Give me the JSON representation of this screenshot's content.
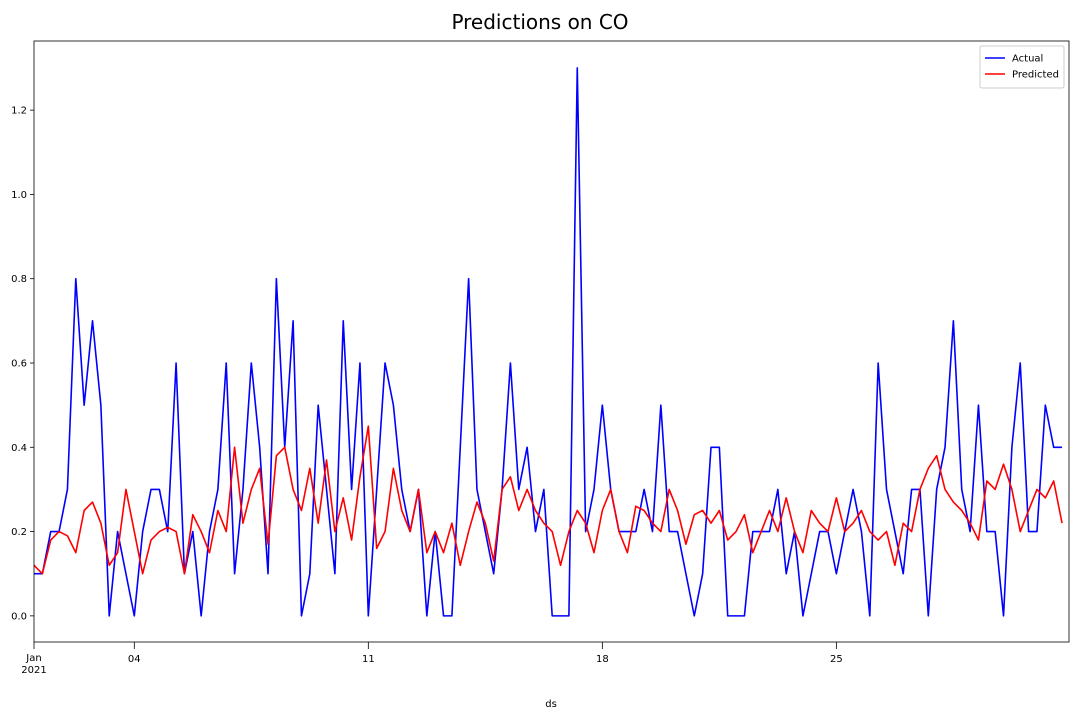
{
  "chart_data": {
    "type": "line",
    "title": "Predictions on CO",
    "xlabel": "ds",
    "x": [
      "2021-01-01 00:00",
      "2021-01-01 06:00",
      "2021-01-01 12:00",
      "2021-01-01 18:00",
      "2021-01-02 00:00",
      "2021-01-02 06:00",
      "2021-01-02 12:00",
      "2021-01-02 18:00",
      "2021-01-03 00:00",
      "2021-01-03 06:00",
      "2021-01-03 12:00",
      "2021-01-03 18:00",
      "2021-01-04 00:00",
      "2021-01-04 06:00",
      "2021-01-04 12:00",
      "2021-01-04 18:00",
      "2021-01-05 00:00",
      "2021-01-05 06:00",
      "2021-01-05 12:00",
      "2021-01-05 18:00",
      "2021-01-06 00:00",
      "2021-01-06 06:00",
      "2021-01-06 12:00",
      "2021-01-06 18:00",
      "2021-01-07 00:00",
      "2021-01-07 06:00",
      "2021-01-07 12:00",
      "2021-01-07 18:00",
      "2021-01-08 00:00",
      "2021-01-08 06:00",
      "2021-01-08 12:00",
      "2021-01-08 18:00",
      "2021-01-09 00:00",
      "2021-01-09 06:00",
      "2021-01-09 12:00",
      "2021-01-09 18:00",
      "2021-01-10 00:00",
      "2021-01-10 06:00",
      "2021-01-10 12:00",
      "2021-01-10 18:00",
      "2021-01-11 00:00",
      "2021-01-11 06:00",
      "2021-01-11 12:00",
      "2021-01-11 18:00",
      "2021-01-12 00:00",
      "2021-01-12 06:00",
      "2021-01-12 12:00",
      "2021-01-12 18:00",
      "2021-01-13 00:00",
      "2021-01-13 06:00",
      "2021-01-13 12:00",
      "2021-01-13 18:00",
      "2021-01-14 00:00",
      "2021-01-14 06:00",
      "2021-01-14 12:00",
      "2021-01-14 18:00",
      "2021-01-15 00:00",
      "2021-01-15 06:00",
      "2021-01-15 12:00",
      "2021-01-15 18:00",
      "2021-01-16 00:00",
      "2021-01-16 06:00",
      "2021-01-16 12:00",
      "2021-01-16 18:00",
      "2021-01-17 00:00",
      "2021-01-17 06:00",
      "2021-01-17 12:00",
      "2021-01-17 18:00",
      "2021-01-18 00:00",
      "2021-01-18 06:00",
      "2021-01-18 12:00",
      "2021-01-18 18:00",
      "2021-01-19 00:00",
      "2021-01-19 06:00",
      "2021-01-19 12:00",
      "2021-01-19 18:00",
      "2021-01-20 00:00",
      "2021-01-20 06:00",
      "2021-01-20 12:00",
      "2021-01-20 18:00",
      "2021-01-21 00:00",
      "2021-01-21 06:00",
      "2021-01-21 12:00",
      "2021-01-21 18:00",
      "2021-01-22 00:00",
      "2021-01-22 06:00",
      "2021-01-22 12:00",
      "2021-01-22 18:00",
      "2021-01-23 00:00",
      "2021-01-23 06:00",
      "2021-01-23 12:00",
      "2021-01-23 18:00",
      "2021-01-24 00:00",
      "2021-01-24 06:00",
      "2021-01-24 12:00",
      "2021-01-24 18:00",
      "2021-01-25 00:00",
      "2021-01-25 06:00",
      "2021-01-25 12:00",
      "2021-01-25 18:00",
      "2021-01-26 00:00",
      "2021-01-26 06:00",
      "2021-01-26 12:00",
      "2021-01-26 18:00",
      "2021-01-27 00:00",
      "2021-01-27 06:00",
      "2021-01-27 12:00",
      "2021-01-27 18:00",
      "2021-01-28 00:00",
      "2021-01-28 06:00",
      "2021-01-28 12:00",
      "2021-01-28 18:00",
      "2021-01-29 00:00",
      "2021-01-29 06:00",
      "2021-01-29 12:00",
      "2021-01-29 18:00",
      "2021-01-30 00:00",
      "2021-01-30 06:00",
      "2021-01-30 12:00",
      "2021-01-30 18:00",
      "2021-01-31 00:00",
      "2021-01-31 06:00",
      "2021-01-31 12:00",
      "2021-01-31 18:00"
    ],
    "series": [
      {
        "name": "Actual",
        "color": "#0000ff",
        "values": [
          0.1,
          0.1,
          0.2,
          0.2,
          0.3,
          0.8,
          0.5,
          0.7,
          0.5,
          0.0,
          0.2,
          0.1,
          0.0,
          0.2,
          0.3,
          0.3,
          0.2,
          0.6,
          0.1,
          0.2,
          0.0,
          0.2,
          0.3,
          0.6,
          0.1,
          0.3,
          0.6,
          0.4,
          0.1,
          0.8,
          0.4,
          0.7,
          0.0,
          0.1,
          0.5,
          0.3,
          0.1,
          0.7,
          0.3,
          0.6,
          0.0,
          0.3,
          0.6,
          0.5,
          0.3,
          0.2,
          0.3,
          0.0,
          0.2,
          0.0,
          0.0,
          0.4,
          0.8,
          0.3,
          0.2,
          0.1,
          0.3,
          0.6,
          0.3,
          0.4,
          0.2,
          0.3,
          0.0,
          0.0,
          0.0,
          1.3,
          0.2,
          0.3,
          0.5,
          0.3,
          0.2,
          0.2,
          0.2,
          0.3,
          0.2,
          0.5,
          0.2,
          0.2,
          0.1,
          0.0,
          0.1,
          0.4,
          0.4,
          0.0,
          0.0,
          0.0,
          0.2,
          0.2,
          0.2,
          0.3,
          0.1,
          0.2,
          0.0,
          0.1,
          0.2,
          0.2,
          0.1,
          0.2,
          0.3,
          0.2,
          0.0,
          0.6,
          0.3,
          0.2,
          0.1,
          0.3,
          0.3,
          0.0,
          0.3,
          0.4,
          0.7,
          0.3,
          0.2,
          0.5,
          0.2,
          0.2,
          0.0,
          0.4,
          0.6,
          0.2,
          0.2,
          0.5,
          0.4,
          0.4
        ]
      },
      {
        "name": "Predicted",
        "color": "#ff0000",
        "values": [
          0.12,
          0.1,
          0.18,
          0.2,
          0.19,
          0.15,
          0.25,
          0.27,
          0.22,
          0.12,
          0.15,
          0.3,
          0.2,
          0.1,
          0.18,
          0.2,
          0.21,
          0.2,
          0.1,
          0.24,
          0.2,
          0.15,
          0.25,
          0.2,
          0.4,
          0.22,
          0.3,
          0.35,
          0.17,
          0.38,
          0.4,
          0.3,
          0.25,
          0.35,
          0.22,
          0.37,
          0.2,
          0.28,
          0.18,
          0.33,
          0.45,
          0.16,
          0.2,
          0.35,
          0.25,
          0.2,
          0.3,
          0.15,
          0.2,
          0.15,
          0.22,
          0.12,
          0.2,
          0.27,
          0.22,
          0.13,
          0.3,
          0.33,
          0.25,
          0.3,
          0.25,
          0.22,
          0.2,
          0.12,
          0.2,
          0.25,
          0.22,
          0.15,
          0.25,
          0.3,
          0.2,
          0.15,
          0.26,
          0.25,
          0.22,
          0.2,
          0.3,
          0.25,
          0.17,
          0.24,
          0.25,
          0.22,
          0.25,
          0.18,
          0.2,
          0.24,
          0.15,
          0.2,
          0.25,
          0.2,
          0.28,
          0.2,
          0.15,
          0.25,
          0.22,
          0.2,
          0.28,
          0.2,
          0.22,
          0.25,
          0.2,
          0.18,
          0.2,
          0.12,
          0.22,
          0.2,
          0.3,
          0.35,
          0.38,
          0.3,
          0.27,
          0.25,
          0.22,
          0.18,
          0.32,
          0.3,
          0.36,
          0.3,
          0.2,
          0.25,
          0.3,
          0.28,
          0.32,
          0.22
        ]
      }
    ],
    "xlim": [
      "2021-01-01 00:00",
      "2021-01-31 23:00"
    ],
    "xticks": [
      {
        "value": "2021-01-01 00:00",
        "label": "Jan\n2021"
      },
      {
        "value": "2021-01-04 00:00",
        "label": "04"
      },
      {
        "value": "2021-01-11 00:00",
        "label": "11"
      },
      {
        "value": "2021-01-18 00:00",
        "label": "18"
      },
      {
        "value": "2021-01-25 00:00",
        "label": "25"
      }
    ],
    "ylim": [
      -0.062,
      1.364
    ],
    "yticks": [
      {
        "value": 0,
        "label": "0.0"
      },
      0.2,
      0.4,
      0.6,
      0.8,
      {
        "value": 1,
        "label": "1.0"
      },
      1.2
    ],
    "legend": "upper right"
  }
}
